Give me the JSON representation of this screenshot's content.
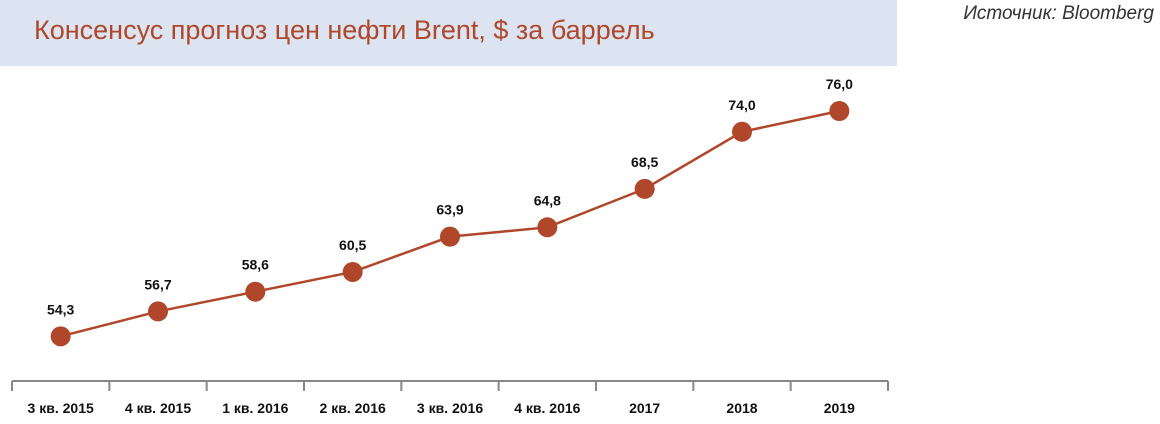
{
  "chart_data": {
    "type": "line",
    "title": "Консенсус прогноз цен нефти Brent, $ за баррель",
    "source": "Источник: Bloomberg",
    "categories": [
      "3 кв. 2015",
      "4 кв. 2015",
      "1 кв. 2016",
      "2 кв. 2016",
      "3 кв. 2016",
      "4 кв. 2016",
      "2017",
      "2018",
      "2019"
    ],
    "values": [
      54.3,
      56.7,
      58.6,
      60.5,
      63.9,
      64.8,
      68.5,
      74.0,
      76.0
    ],
    "data_labels": [
      "54,3",
      "56,7",
      "58,6",
      "60,5",
      "63,9",
      "64,8",
      "68,5",
      "74,0",
      "76,0"
    ],
    "xlabel": "",
    "ylabel": "",
    "ylim": [
      50,
      78
    ],
    "grid": false,
    "y_axis_visible": false,
    "colors": {
      "series": "#b0472a",
      "title": "#b0472a",
      "title_background": "#dbe4f0",
      "axis": "#888888"
    }
  }
}
